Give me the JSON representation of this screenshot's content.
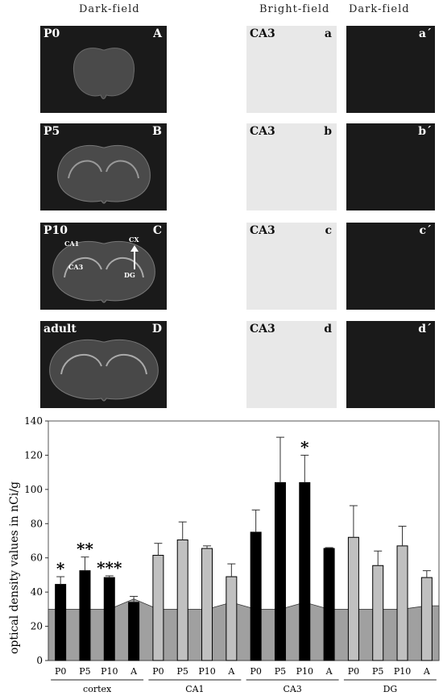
{
  "headers": {
    "left": "Dark-field",
    "mid": "Bright-field",
    "right": "Dark-field"
  },
  "rows": [
    {
      "age": "P0",
      "panel": "A",
      "region": "CA3",
      "bright": "a",
      "dark": "a´"
    },
    {
      "age": "P5",
      "panel": "B",
      "region": "CA3",
      "bright": "b",
      "dark": "b´"
    },
    {
      "age": "P10",
      "panel": "C",
      "region": "CA3",
      "bright": "c",
      "dark": "c´"
    },
    {
      "age": "adult",
      "panel": "D",
      "region": "CA3",
      "bright": "d",
      "dark": "d´"
    }
  ],
  "annotations": {
    "ca1": "CA1",
    "ca3": "CA3",
    "cx": "CX",
    "dg": "DG"
  },
  "chart_data": {
    "type": "bar",
    "ylabel": "optical density values in nCi/g",
    "ylim": [
      0,
      140
    ],
    "yticks": [
      "0",
      "20",
      "40",
      "60",
      "80",
      "100",
      "120",
      "140"
    ],
    "groups": [
      "cortex",
      "CA1",
      "CA3",
      "DG"
    ],
    "categories": [
      "P0",
      "P5",
      "P10",
      "A",
      "P0",
      "P5",
      "P10",
      "A",
      "P0",
      "P5",
      "P10",
      "A",
      "P0",
      "P5",
      "P10",
      "A"
    ],
    "values": [
      44.5,
      52.5,
      48.5,
      34,
      61.5,
      70.5,
      65.5,
      49,
      75,
      104,
      104,
      65.5,
      72,
      55.5,
      67,
      48.5
    ],
    "errors": [
      4.5,
      8,
      1,
      3.5,
      7,
      10.5,
      1.5,
      7.5,
      13,
      26.5,
      16,
      0.5,
      18.5,
      8.5,
      11.5,
      4
    ],
    "bar_colors": [
      "#000000",
      "#000000",
      "#000000",
      "#000000",
      "#c0c0c0",
      "#c0c0c0",
      "#c0c0c0",
      "#c0c0c0",
      "#000000",
      "#000000",
      "#000000",
      "#000000",
      "#c0c0c0",
      "#c0c0c0",
      "#c0c0c0",
      "#c0c0c0"
    ],
    "significance": [
      "*",
      "**",
      "***",
      "",
      "",
      "",
      "",
      "",
      "",
      "",
      "*",
      "",
      "",
      "",
      "",
      ""
    ],
    "background_area": [
      30,
      30,
      30,
      36,
      30,
      30,
      30,
      34,
      30,
      30,
      34,
      30,
      30,
      30,
      30,
      32
    ],
    "area_color": "#a0a0a0"
  }
}
